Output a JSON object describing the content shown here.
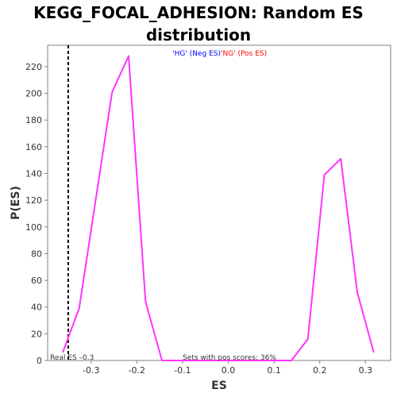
{
  "chart_data": {
    "type": "line",
    "title": "KEGG_FOCAL_ADHESION: Random ES distribution",
    "xlabel": "ES",
    "ylabel": "P(ES)",
    "xlim": [
      -0.395,
      0.355
    ],
    "ylim": [
      0,
      236
    ],
    "x_ticks": [
      -0.3,
      -0.2,
      -0.1,
      0.0,
      0.1,
      0.2,
      0.3
    ],
    "x_tick_labels": [
      "-0.3",
      "-0.2",
      "-0.1",
      "0.0",
      "0.1",
      "0.2",
      "0.3"
    ],
    "y_ticks": [
      0,
      20,
      40,
      60,
      80,
      100,
      120,
      140,
      160,
      180,
      200,
      220
    ],
    "y_tick_labels": [
      "0",
      "20",
      "40",
      "60",
      "80",
      "100",
      "120",
      "140",
      "160",
      "180",
      "200",
      "220"
    ],
    "grid": false,
    "legend": {
      "position": "top-center",
      "entries": [
        {
          "label": "'HG' (Neg ES)",
          "color": "#0000ff"
        },
        {
          "label": "'NG' (Pos ES)",
          "color": "#ff0000"
        }
      ]
    },
    "series": [
      {
        "color": "#ff33ff",
        "x": [
          -0.362,
          -0.326,
          -0.254,
          -0.218,
          -0.181,
          -0.145,
          0.138,
          0.174,
          0.21,
          0.246,
          0.282,
          0.318
        ],
        "y": [
          6,
          39,
          201,
          228,
          44,
          0,
          0,
          16,
          139,
          151,
          51,
          6
        ]
      }
    ],
    "real_es": {
      "value": -0.35,
      "label": "Real ES –0.3"
    },
    "annotation": "Sets with pos scores: 36%"
  }
}
